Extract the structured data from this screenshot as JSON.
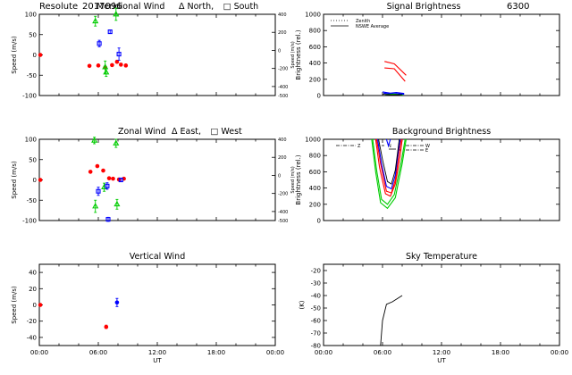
{
  "figure": {
    "header_station": "Resolute",
    "header_date": "2017096",
    "signal_wavelength": "6300"
  },
  "chart_data": [
    {
      "id": "meridional",
      "type": "scatter",
      "title": "Meridional Wind",
      "legend": [
        {
          "symbol": "Δ",
          "label": "North,"
        },
        {
          "symbol": "□",
          "label": "South"
        }
      ],
      "ylabel": "Speed (m/s)",
      "right_ylabel": "Speed (m/s)",
      "ylim": [
        -100,
        100
      ],
      "yticks": [
        -100,
        -50,
        0,
        50,
        100
      ],
      "right_ylim": [
        -500,
        400
      ],
      "right_yticks": [
        400,
        200,
        0,
        -200,
        -400,
        -500
      ],
      "right_yticks_text": [
        "400",
        "200",
        "0",
        "-200",
        "-400",
        "-500"
      ],
      "xlim": [
        0,
        24
      ],
      "series": [
        {
          "name": "zenith",
          "color": "#ff0000",
          "marker": "dot",
          "points": [
            [
              0.1,
              0,
              0
            ],
            [
              5.1,
              -27,
              2
            ],
            [
              6.0,
              -26,
              2
            ],
            [
              6.7,
              -31,
              3
            ],
            [
              7.4,
              -25,
              3
            ],
            [
              7.9,
              -17,
              3
            ],
            [
              8.3,
              -24,
              3
            ],
            [
              8.8,
              -26,
              3
            ]
          ]
        },
        {
          "name": "north",
          "color": "#00cc00",
          "marker": "triangle",
          "points": [
            [
              5.7,
              83,
              12
            ],
            [
              6.7,
              -30,
              15
            ],
            [
              6.8,
              -43,
              10
            ],
            [
              7.8,
              100,
              15
            ]
          ]
        },
        {
          "name": "south",
          "color": "#0000ff",
          "marker": "square",
          "points": [
            [
              6.1,
              28,
              8
            ],
            [
              7.2,
              57,
              4
            ],
            [
              8.1,
              2,
              15
            ]
          ]
        }
      ]
    },
    {
      "id": "signal",
      "type": "line",
      "title": "Signal Brightness",
      "ylabel": "Brightness (rel.)",
      "ylim": [
        0,
        1000
      ],
      "yticks": [
        0,
        200,
        400,
        600,
        800,
        1000
      ],
      "xlim": [
        0,
        24
      ],
      "legend": [
        {
          "label": "Zenith",
          "style": "dotted"
        },
        {
          "label": "NSWE Average",
          "style": "solid"
        }
      ],
      "series": [
        {
          "name": "red-1",
          "color": "#ff0000",
          "points": [
            [
              6.2,
              420
            ],
            [
              7.2,
              390
            ],
            [
              8.4,
              250
            ]
          ]
        },
        {
          "name": "red-2",
          "color": "#ff0000",
          "points": [
            [
              6.2,
              340
            ],
            [
              7.2,
              330
            ],
            [
              8.3,
              175
            ]
          ]
        },
        {
          "name": "blue-1",
          "color": "#0000ff",
          "points": [
            [
              6.0,
              45
            ],
            [
              6.8,
              30
            ],
            [
              7.4,
              38
            ],
            [
              8.2,
              25
            ]
          ]
        },
        {
          "name": "blue-2",
          "color": "#0000ff",
          "points": [
            [
              6.1,
              30
            ],
            [
              6.8,
              20
            ],
            [
              7.4,
              25
            ],
            [
              8.2,
              15
            ]
          ]
        },
        {
          "name": "green-1",
          "color": "#00cc00",
          "points": [
            [
              6.3,
              12
            ],
            [
              7.2,
              18
            ],
            [
              8.1,
              5
            ]
          ]
        },
        {
          "name": "black-1",
          "color": "#000000",
          "points": [
            [
              6.0,
              15
            ],
            [
              7.0,
              8
            ],
            [
              8.0,
              12
            ]
          ]
        }
      ]
    },
    {
      "id": "zonal",
      "type": "scatter",
      "title": "Zonal Wind",
      "legend": [
        {
          "symbol": "Δ",
          "label": "East,"
        },
        {
          "symbol": "□",
          "label": "West"
        }
      ],
      "ylabel": "Speed (m/s)",
      "right_ylabel": "Speed (m/s)",
      "ylim": [
        -100,
        100
      ],
      "yticks": [
        -100,
        -50,
        0,
        50,
        100
      ],
      "right_ylim": [
        -500,
        400
      ],
      "right_yticks": [
        400,
        200,
        0,
        -200,
        -400,
        -500
      ],
      "right_yticks_text": [
        "400",
        "200",
        "0",
        "-200",
        "-400",
        "-500"
      ],
      "xlim": [
        0,
        24
      ],
      "series": [
        {
          "name": "zenith",
          "color": "#ff0000",
          "marker": "dot",
          "points": [
            [
              0.1,
              0,
              0
            ],
            [
              5.2,
              20,
              2
            ],
            [
              5.9,
              34,
              2
            ],
            [
              6.5,
              23,
              2
            ],
            [
              7.1,
              4,
              2
            ],
            [
              7.5,
              3,
              2
            ],
            [
              8.1,
              1,
              2
            ],
            [
              8.6,
              3,
              2
            ]
          ]
        },
        {
          "name": "east",
          "color": "#00cc00",
          "marker": "triangle",
          "points": [
            [
              5.6,
              97,
              8
            ],
            [
              5.7,
              -65,
              15
            ],
            [
              6.6,
              -18,
              10
            ],
            [
              7.8,
              90,
              10
            ],
            [
              7.9,
              -60,
              12
            ]
          ]
        },
        {
          "name": "west",
          "color": "#0000ff",
          "marker": "square",
          "points": [
            [
              6.0,
              -28,
              10
            ],
            [
              6.9,
              -15,
              8
            ],
            [
              7.0,
              -97,
              5
            ],
            [
              8.3,
              0,
              4
            ]
          ]
        }
      ]
    },
    {
      "id": "background",
      "type": "line",
      "title": "Background Brightness",
      "ylabel": "Brightness (rel.)",
      "ylim": [
        0,
        1000
      ],
      "yticks": [
        0,
        200,
        400,
        600,
        800,
        1000
      ],
      "xlim": [
        0,
        24
      ],
      "legend": [
        {
          "label": "Z",
          "style": "dash-dot"
        },
        {
          "label": "N",
          "style": "dashed"
        },
        {
          "label": "S",
          "style": "solid"
        },
        {
          "label": "W",
          "style": "dash-dot"
        },
        {
          "label": "E",
          "style": "dash-dot"
        }
      ],
      "series": [
        {
          "name": "green-outer",
          "color": "#00cc00",
          "points": [
            [
              4.9,
              1000
            ],
            [
              5.3,
              600
            ],
            [
              5.8,
              220
            ],
            [
              6.5,
              150
            ],
            [
              7.3,
              280
            ],
            [
              8.0,
              700
            ],
            [
              8.4,
              1000
            ]
          ]
        },
        {
          "name": "green-inner",
          "color": "#00cc00",
          "points": [
            [
              5.0,
              1000
            ],
            [
              5.4,
              620
            ],
            [
              5.9,
              260
            ],
            [
              6.5,
              200
            ],
            [
              7.2,
              320
            ],
            [
              7.9,
              720
            ],
            [
              8.3,
              1000
            ]
          ]
        },
        {
          "name": "red-1",
          "color": "#ff0000",
          "points": [
            [
              5.3,
              1000
            ],
            [
              5.7,
              650
            ],
            [
              6.3,
              330
            ],
            [
              6.8,
              300
            ],
            [
              7.3,
              450
            ],
            [
              7.8,
              800
            ],
            [
              8.0,
              1000
            ]
          ]
        },
        {
          "name": "red-2",
          "color": "#ff0000",
          "points": [
            [
              5.4,
              1000
            ],
            [
              5.8,
              700
            ],
            [
              6.4,
              360
            ],
            [
              6.9,
              340
            ],
            [
              7.3,
              500
            ],
            [
              7.7,
              850
            ],
            [
              7.9,
              1000
            ]
          ]
        },
        {
          "name": "blue-1",
          "color": "#0000ff",
          "points": [
            [
              5.5,
              1000
            ],
            [
              5.9,
              700
            ],
            [
              6.4,
              420
            ],
            [
              6.9,
              390
            ],
            [
              7.3,
              560
            ],
            [
              7.6,
              850
            ],
            [
              7.8,
              1000
            ]
          ]
        },
        {
          "name": "blue-2",
          "color": "#0000ff",
          "points": [
            [
              6.4,
              1000
            ],
            [
              6.6,
              920
            ],
            [
              6.8,
              1000
            ]
          ]
        },
        {
          "name": "black-1",
          "color": "#000000",
          "points": [
            [
              5.6,
              1000
            ],
            [
              6.0,
              750
            ],
            [
              6.5,
              480
            ],
            [
              6.9,
              450
            ],
            [
              7.3,
              620
            ],
            [
              7.6,
              900
            ],
            [
              7.7,
              1000
            ]
          ]
        }
      ]
    },
    {
      "id": "vertical",
      "type": "scatter",
      "title": "Vertical Wind",
      "ylabel": "Speed (m/s)",
      "ylim": [
        -50,
        50
      ],
      "yticks": [
        -40,
        -20,
        0,
        20,
        40
      ],
      "xlim": [
        0,
        24
      ],
      "xticks": [
        0,
        6,
        12,
        18,
        24
      ],
      "xtick_labels": [
        "00:00",
        "06:00",
        "12:00",
        "18:00",
        "00:00"
      ],
      "xlabel": "UT",
      "series": [
        {
          "name": "zenith",
          "color": "#ff0000",
          "marker": "dot",
          "points": [
            [
              0.1,
              0,
              0
            ],
            [
              6.8,
              -27,
              2
            ]
          ]
        },
        {
          "name": "avg",
          "color": "#0000ff",
          "marker": "dot",
          "points": [
            [
              7.9,
              3,
              5
            ]
          ]
        }
      ]
    },
    {
      "id": "sky",
      "type": "line",
      "title": "Sky Temperature",
      "ylabel": "(K)",
      "ylim": [
        -80,
        -15
      ],
      "yticks": [
        -80,
        -70,
        -60,
        -50,
        -40,
        -30,
        -20
      ],
      "xlim": [
        0,
        24
      ],
      "xticks": [
        0,
        6,
        12,
        18,
        24
      ],
      "xtick_labels": [
        "00:00",
        "06:00",
        "12:00",
        "18:00",
        "00:00"
      ],
      "xlabel": "UT",
      "series": [
        {
          "name": "sky-temp",
          "color": "#000000",
          "points": [
            [
              5.8,
              -80
            ],
            [
              6.0,
              -60
            ],
            [
              6.4,
              -47
            ],
            [
              7.0,
              -45
            ],
            [
              8.0,
              -40
            ]
          ]
        }
      ]
    }
  ]
}
